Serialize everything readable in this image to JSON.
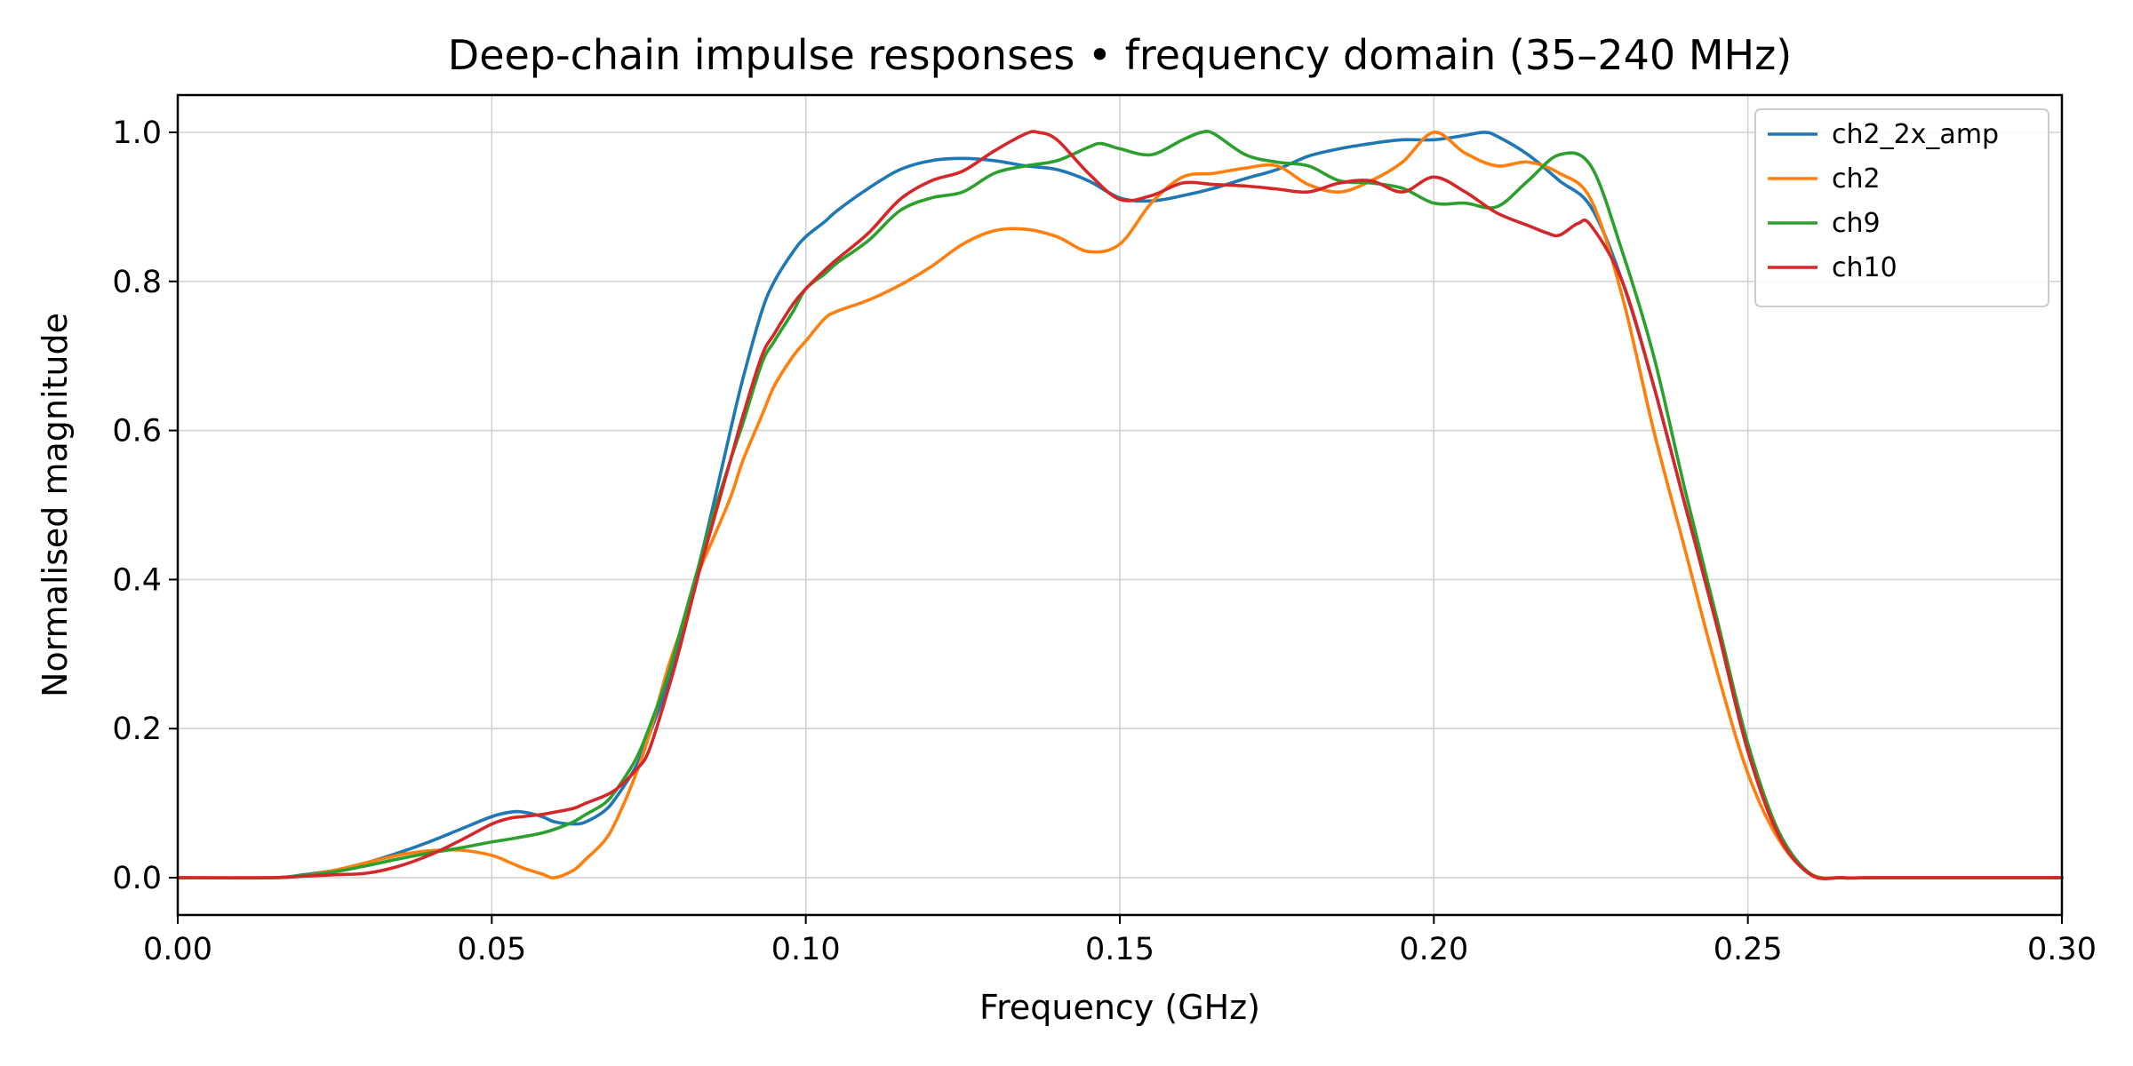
{
  "chart_data": {
    "type": "line",
    "title": "Deep-chain impulse responses • frequency domain (35–240 MHz)",
    "xlabel": "Frequency (GHz)",
    "ylabel": "Normalised magnitude",
    "xlim": [
      0.0,
      0.3
    ],
    "ylim": [
      -0.05,
      1.05
    ],
    "xticks": [
      0.0,
      0.05,
      0.1,
      0.15,
      0.2,
      0.25,
      0.3
    ],
    "xtick_labels": [
      "0.00",
      "0.05",
      "0.10",
      "0.15",
      "0.20",
      "0.25",
      "0.30"
    ],
    "yticks": [
      0.0,
      0.2,
      0.4,
      0.6,
      0.8,
      1.0
    ],
    "ytick_labels": [
      "0.0",
      "0.2",
      "0.4",
      "0.6",
      "0.8",
      "1.0"
    ],
    "grid": true,
    "legend_position": "top-right",
    "series": [
      {
        "name": "ch2_2x_amp",
        "color": "#1f77b4",
        "x": [
          0,
          0.015,
          0.02,
          0.025,
          0.03,
          0.035,
          0.04,
          0.045,
          0.05,
          0.053,
          0.055,
          0.058,
          0.06,
          0.063,
          0.065,
          0.068,
          0.07,
          0.073,
          0.075,
          0.078,
          0.08,
          0.083,
          0.085,
          0.088,
          0.09,
          0.093,
          0.095,
          0.098,
          0.1,
          0.103,
          0.105,
          0.11,
          0.115,
          0.12,
          0.125,
          0.13,
          0.135,
          0.14,
          0.145,
          0.15,
          0.155,
          0.16,
          0.165,
          0.17,
          0.175,
          0.18,
          0.185,
          0.19,
          0.195,
          0.2,
          0.205,
          0.208,
          0.21,
          0.215,
          0.22,
          0.225,
          0.23,
          0.235,
          0.24,
          0.245,
          0.25,
          0.255,
          0.26,
          0.265,
          0.27,
          0.28,
          0.29,
          0.3
        ],
        "y": [
          0,
          0,
          0.004,
          0.01,
          0.02,
          0.033,
          0.048,
          0.065,
          0.082,
          0.088,
          0.088,
          0.082,
          0.075,
          0.072,
          0.075,
          0.09,
          0.11,
          0.15,
          0.19,
          0.26,
          0.32,
          0.42,
          0.49,
          0.6,
          0.67,
          0.76,
          0.8,
          0.84,
          0.86,
          0.88,
          0.895,
          0.925,
          0.95,
          0.962,
          0.965,
          0.962,
          0.955,
          0.95,
          0.935,
          0.912,
          0.908,
          0.915,
          0.925,
          0.938,
          0.95,
          0.968,
          0.978,
          0.985,
          0.99,
          0.99,
          0.996,
          1.0,
          0.995,
          0.97,
          0.935,
          0.9,
          0.8,
          0.66,
          0.5,
          0.34,
          0.17,
          0.06,
          0.005,
          0,
          0,
          0,
          0,
          0
        ]
      },
      {
        "name": "ch2",
        "color": "#ff7f0e",
        "x": [
          0,
          0.015,
          0.02,
          0.025,
          0.03,
          0.035,
          0.04,
          0.045,
          0.05,
          0.053,
          0.055,
          0.058,
          0.06,
          0.063,
          0.065,
          0.068,
          0.07,
          0.073,
          0.075,
          0.078,
          0.08,
          0.083,
          0.085,
          0.088,
          0.09,
          0.093,
          0.095,
          0.098,
          0.1,
          0.103,
          0.105,
          0.11,
          0.115,
          0.12,
          0.125,
          0.13,
          0.135,
          0.14,
          0.145,
          0.15,
          0.155,
          0.16,
          0.165,
          0.17,
          0.175,
          0.18,
          0.185,
          0.19,
          0.195,
          0.2,
          0.205,
          0.21,
          0.215,
          0.22,
          0.225,
          0.23,
          0.235,
          0.24,
          0.245,
          0.25,
          0.255,
          0.26,
          0.265,
          0.27,
          0.28,
          0.29,
          0.3
        ],
        "y": [
          0,
          0,
          0.003,
          0.01,
          0.02,
          0.03,
          0.036,
          0.037,
          0.03,
          0.02,
          0.013,
          0.005,
          0.0,
          0.01,
          0.025,
          0.05,
          0.08,
          0.14,
          0.19,
          0.28,
          0.33,
          0.41,
          0.45,
          0.51,
          0.56,
          0.62,
          0.66,
          0.7,
          0.72,
          0.75,
          0.76,
          0.775,
          0.795,
          0.82,
          0.85,
          0.868,
          0.87,
          0.86,
          0.84,
          0.85,
          0.905,
          0.94,
          0.945,
          0.952,
          0.955,
          0.93,
          0.92,
          0.935,
          0.96,
          1.0,
          0.972,
          0.955,
          0.96,
          0.945,
          0.91,
          0.78,
          0.6,
          0.44,
          0.28,
          0.14,
          0.05,
          0.005,
          0,
          0,
          0,
          0,
          0
        ]
      },
      {
        "name": "ch9",
        "color": "#2ca02c",
        "x": [
          0,
          0.015,
          0.02,
          0.025,
          0.03,
          0.035,
          0.04,
          0.045,
          0.05,
          0.053,
          0.055,
          0.058,
          0.06,
          0.063,
          0.065,
          0.068,
          0.07,
          0.073,
          0.075,
          0.078,
          0.08,
          0.083,
          0.085,
          0.088,
          0.09,
          0.093,
          0.095,
          0.098,
          0.1,
          0.103,
          0.105,
          0.11,
          0.115,
          0.12,
          0.125,
          0.13,
          0.135,
          0.14,
          0.145,
          0.147,
          0.15,
          0.155,
          0.16,
          0.163,
          0.165,
          0.17,
          0.175,
          0.18,
          0.185,
          0.19,
          0.195,
          0.2,
          0.205,
          0.21,
          0.215,
          0.22,
          0.225,
          0.23,
          0.235,
          0.24,
          0.245,
          0.25,
          0.255,
          0.26,
          0.265,
          0.27,
          0.28,
          0.29,
          0.3
        ],
        "y": [
          0,
          0,
          0.003,
          0.008,
          0.016,
          0.025,
          0.033,
          0.04,
          0.048,
          0.052,
          0.055,
          0.06,
          0.065,
          0.075,
          0.085,
          0.1,
          0.12,
          0.16,
          0.2,
          0.27,
          0.33,
          0.42,
          0.48,
          0.56,
          0.61,
          0.69,
          0.72,
          0.76,
          0.79,
          0.81,
          0.825,
          0.855,
          0.895,
          0.912,
          0.92,
          0.945,
          0.955,
          0.962,
          0.98,
          0.985,
          0.978,
          0.97,
          0.99,
          1.0,
          0.998,
          0.97,
          0.96,
          0.955,
          0.935,
          0.932,
          0.925,
          0.905,
          0.905,
          0.9,
          0.935,
          0.97,
          0.955,
          0.84,
          0.7,
          0.52,
          0.35,
          0.18,
          0.06,
          0.005,
          0,
          0,
          0,
          0,
          0
        ]
      },
      {
        "name": "ch10",
        "color": "#d62728",
        "x": [
          0,
          0.015,
          0.02,
          0.025,
          0.03,
          0.035,
          0.04,
          0.045,
          0.05,
          0.053,
          0.055,
          0.058,
          0.06,
          0.063,
          0.065,
          0.068,
          0.07,
          0.073,
          0.075,
          0.078,
          0.08,
          0.083,
          0.085,
          0.088,
          0.09,
          0.093,
          0.095,
          0.098,
          0.1,
          0.103,
          0.105,
          0.11,
          0.115,
          0.12,
          0.125,
          0.13,
          0.135,
          0.137,
          0.14,
          0.145,
          0.15,
          0.155,
          0.16,
          0.165,
          0.17,
          0.175,
          0.18,
          0.185,
          0.19,
          0.195,
          0.2,
          0.205,
          0.21,
          0.215,
          0.218,
          0.22,
          0.223,
          0.225,
          0.23,
          0.235,
          0.24,
          0.245,
          0.25,
          0.255,
          0.26,
          0.265,
          0.27,
          0.28,
          0.29,
          0.3
        ],
        "y": [
          0,
          0,
          0.002,
          0.004,
          0.006,
          0.015,
          0.03,
          0.05,
          0.072,
          0.08,
          0.082,
          0.085,
          0.088,
          0.093,
          0.1,
          0.11,
          0.12,
          0.145,
          0.17,
          0.25,
          0.31,
          0.41,
          0.47,
          0.56,
          0.62,
          0.7,
          0.73,
          0.77,
          0.79,
          0.815,
          0.83,
          0.865,
          0.91,
          0.935,
          0.948,
          0.975,
          0.998,
          1.0,
          0.99,
          0.945,
          0.91,
          0.915,
          0.932,
          0.93,
          0.928,
          0.924,
          0.92,
          0.932,
          0.935,
          0.92,
          0.94,
          0.92,
          0.892,
          0.875,
          0.865,
          0.862,
          0.878,
          0.875,
          0.8,
          0.66,
          0.5,
          0.34,
          0.17,
          0.055,
          0.004,
          0,
          0,
          0,
          0,
          0
        ]
      }
    ]
  }
}
